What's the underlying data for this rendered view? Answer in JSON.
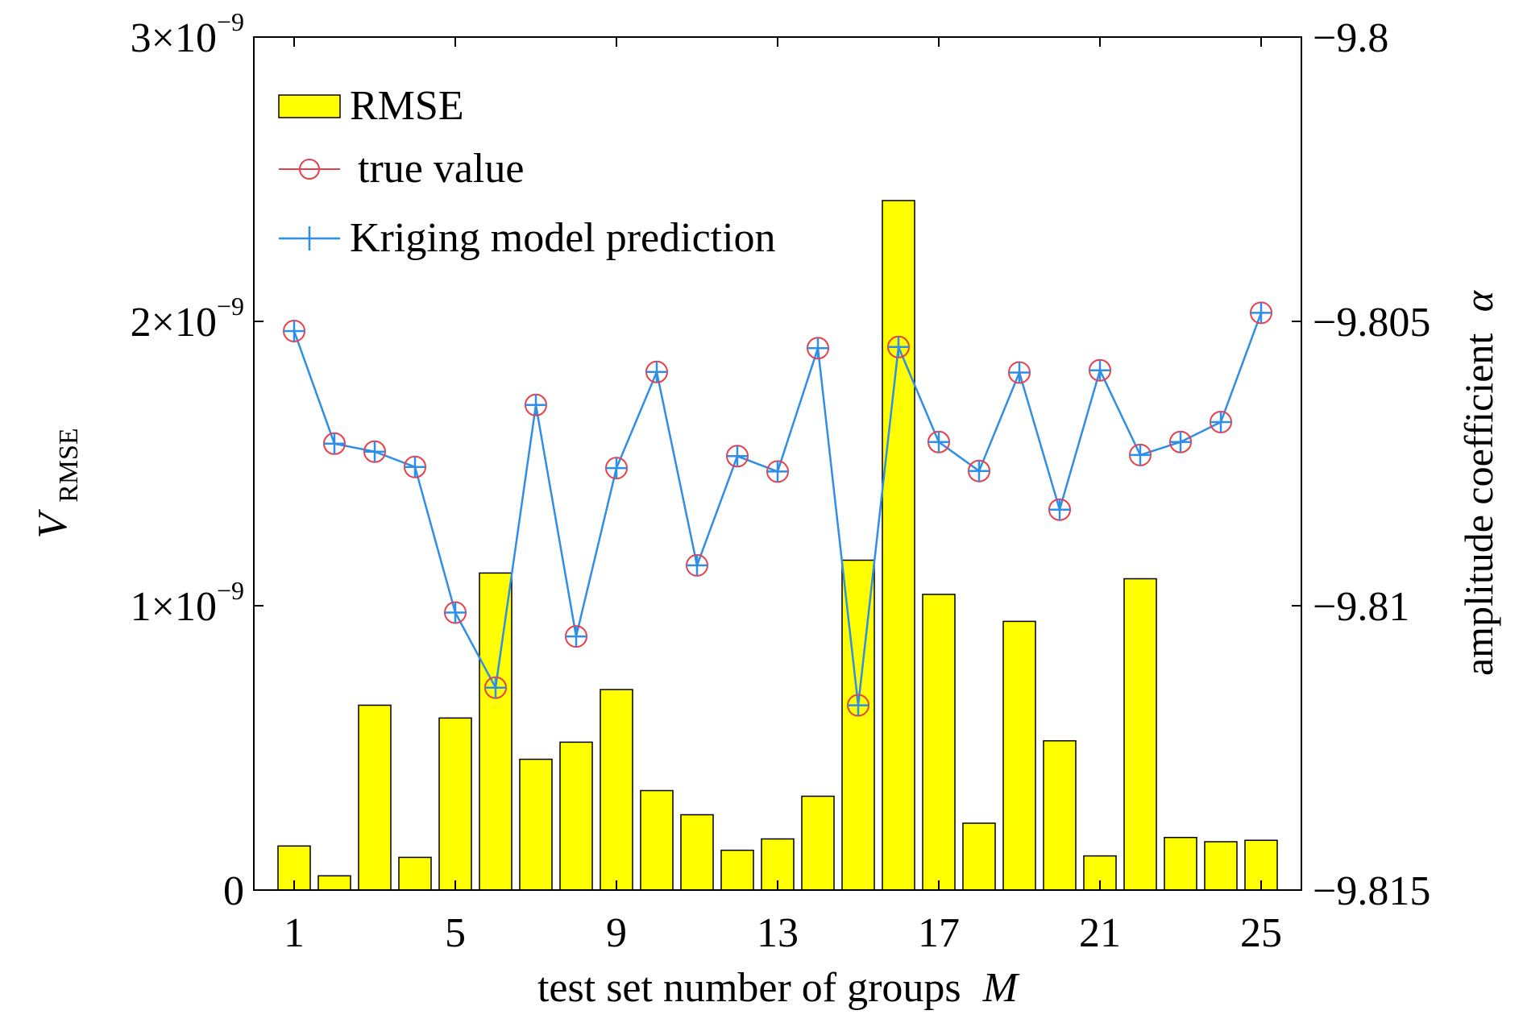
{
  "chart_data": {
    "type": "bar",
    "xlabel": "test set number of groups",
    "xlabel_var": "M",
    "ylabel_left_var": "V",
    "ylabel_left_sub": "RMSE",
    "ylabel_right": "amplitude coefficient",
    "ylabel_right_var": "α",
    "x": [
      1,
      2,
      3,
      4,
      5,
      6,
      7,
      8,
      9,
      10,
      11,
      12,
      13,
      14,
      15,
      16,
      17,
      18,
      19,
      20,
      21,
      22,
      23,
      24,
      25
    ],
    "x_ticks": [
      1,
      5,
      9,
      13,
      17,
      21,
      25
    ],
    "xlim": [
      0,
      26
    ],
    "left_axis": {
      "ylim": [
        0,
        3e-09
      ],
      "ticks": [
        0,
        1e-09,
        2e-09,
        3e-09
      ],
      "tick_labels": [
        {
          "mant": "0",
          "exp": ""
        },
        {
          "mant": "1×10",
          "exp": "−9"
        },
        {
          "mant": "2×10",
          "exp": "−9"
        },
        {
          "mant": "3×10",
          "exp": "−9"
        }
      ]
    },
    "right_axis": {
      "ylim": [
        -9.815,
        -9.8
      ],
      "ticks": [
        -9.815,
        -9.81,
        -9.805,
        -9.8
      ],
      "tick_labels": [
        "−9.815",
        "−9.81",
        "−9.805",
        "−9.8"
      ]
    },
    "legend": {
      "placement": "top-left",
      "entries": [
        "RMSE",
        "true value",
        "Kriging model prediction"
      ]
    },
    "series": [
      {
        "name": "RMSE",
        "kind": "bar",
        "axis": "left",
        "color": "#ffff00",
        "values": [
          1.55e-10,
          5e-11,
          6.5e-10,
          1.15e-10,
          6.05e-10,
          1.115e-09,
          4.6e-10,
          5.2e-10,
          7.05e-10,
          3.5e-10,
          2.65e-10,
          1.4e-10,
          1.8e-10,
          3.3e-10,
          1.16e-09,
          2.425e-09,
          1.04e-09,
          2.35e-10,
          9.45e-10,
          5.25e-10,
          1.2e-10,
          1.095e-09,
          1.85e-10,
          1.7e-10,
          1.75e-10
        ]
      },
      {
        "name": "true value",
        "kind": "line-marker-circle",
        "axis": "right",
        "color": "#e8404a",
        "values": [
          -9.80517,
          -9.80715,
          -9.80729,
          -9.80756,
          -9.81012,
          -9.81144,
          -9.80647,
          -9.81054,
          -9.80758,
          -9.80589,
          -9.80929,
          -9.80737,
          -9.80764,
          -9.80547,
          -9.81175,
          -9.80545,
          -9.80712,
          -9.80763,
          -9.8059,
          -9.80831,
          -9.80586,
          -9.80735,
          -9.80712,
          -9.80677,
          -9.80485
        ]
      },
      {
        "name": "Kriging model prediction",
        "kind": "line-marker-plus",
        "axis": "right",
        "color": "#2f8fe6",
        "values": [
          -9.80517,
          -9.80715,
          -9.80729,
          -9.80756,
          -9.81012,
          -9.81144,
          -9.80647,
          -9.81054,
          -9.80758,
          -9.80589,
          -9.80929,
          -9.80737,
          -9.80764,
          -9.80547,
          -9.81175,
          -9.80545,
          -9.80712,
          -9.80763,
          -9.8059,
          -9.80831,
          -9.80586,
          -9.80735,
          -9.80712,
          -9.80677,
          -9.80485
        ]
      }
    ]
  }
}
